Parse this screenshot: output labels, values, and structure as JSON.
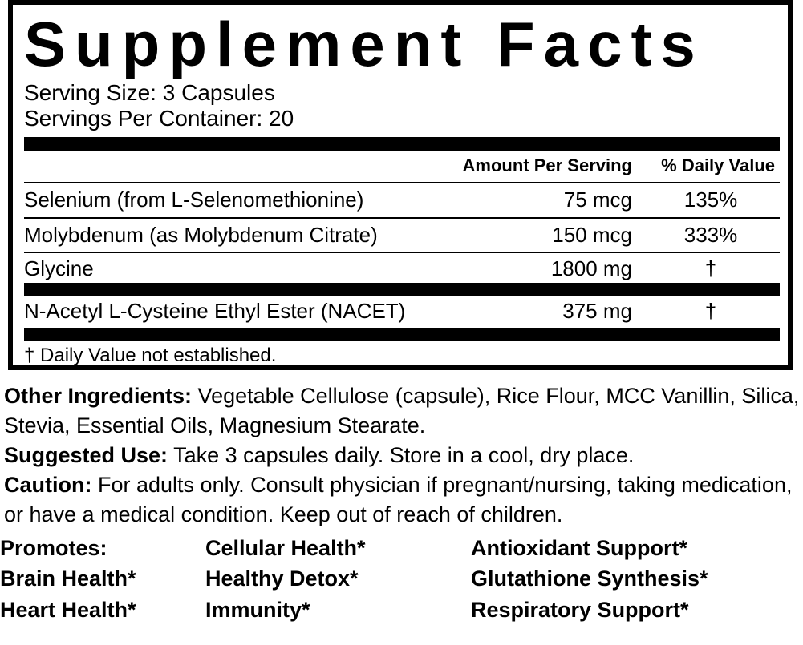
{
  "title": "Supplement Facts",
  "serving_size": "Serving Size: 3 Capsules",
  "servings_per_container": "Servings Per Container: 20",
  "table": {
    "header": [
      "Amount Per Serving",
      "% Daily Value"
    ],
    "rows": [
      [
        "Selenium (from L-Selenomethionine)",
        "75 mcg",
        "135%"
      ],
      [
        "Molybdenum (as Molybdenum Citrate)",
        "150 mcg",
        "333%"
      ],
      [
        "Glycine",
        "1800 mg",
        "†"
      ],
      [
        "N-Acetyl L-Cysteine Ethyl Ester (NACET)",
        "375 mg",
        "†"
      ]
    ]
  },
  "footnote": "† Daily Value not established.",
  "other_ingredients": {
    "label": "Other Ingredients:",
    "text": "Vegetable Cellulose (capsule), Rice Flour, MCC Vanillin, Silica, Stevia, Essential Oils, Magnesium Stearate."
  },
  "suggested_use": {
    "label": "Suggested Use:",
    "text": "Take 3 capsules daily. Store in a cool, dry place."
  },
  "caution": {
    "label": "Caution:",
    "text": "For adults only. Consult physician if pregnant/nursing, taking medication, or have a medical condition. Keep out of reach of children."
  },
  "promotes": [
    [
      "Promotes:",
      "Cellular Health*",
      "Antioxidant Support*"
    ],
    [
      "Brain Health*",
      "Healthy Detox*",
      "Glutathione Synthesis*"
    ],
    [
      "Heart Health*",
      "Immunity*",
      "Respiratory Support*"
    ]
  ]
}
